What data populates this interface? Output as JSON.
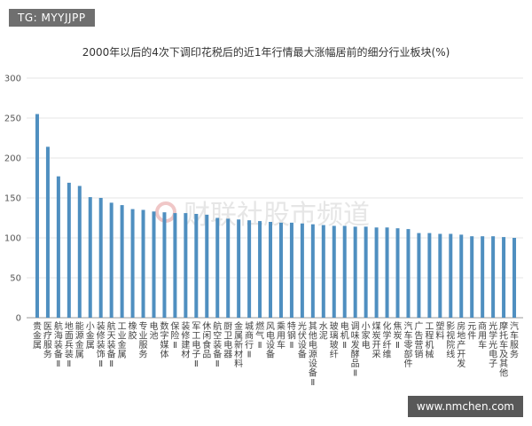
{
  "corner_tag": "TG: MYYJJPP",
  "footer_tag": "www.nmchen.com",
  "watermark_text": "财联社股市频道",
  "colors": {
    "bar": "#4f8fc0",
    "grid": "#e6e6e6",
    "axis": "#999999"
  },
  "chart_data": {
    "type": "bar",
    "title": "2000年以后的4次下调印花税后的近1年行情最大涨幅居前的细分行业板块(%)",
    "ylim": [
      0,
      300
    ],
    "yticks": [
      0,
      50,
      100,
      150,
      200,
      250,
      300
    ],
    "grid": true,
    "categories": [
      "贵金属",
      "医疗服务",
      "航海装备Ⅱ",
      "地面兵装Ⅱ",
      "能源金属",
      "小金属",
      "装修装饰Ⅱ",
      "航天装备Ⅱ",
      "工业金属",
      "橡胶",
      "专业服务",
      "电池",
      "数字媒体",
      "保险Ⅱ",
      "装修建材",
      "军工电子Ⅱ",
      "休闲食品",
      "航空装备Ⅱ",
      "厨卫电器",
      "金属新材料",
      "城商行Ⅱ",
      "燃气Ⅱ",
      "风电设备",
      "乘用车",
      "特钢Ⅱ",
      "光伏设备",
      "其他电源设备Ⅱ",
      "水泥",
      "玻璃玻纤",
      "电机Ⅱ",
      "调味发酵品Ⅱ",
      "小家电",
      "煤炭开采",
      "化学纤维",
      "焦炭Ⅱ",
      "汽车零部件",
      "广告营销",
      "工程机械",
      "塑料",
      "影视院线",
      "房地产开发",
      "元件",
      "商用车",
      "光学光电子",
      "摩托车及其他",
      "汽车服务"
    ],
    "values": [
      255,
      214,
      177,
      169,
      165,
      151,
      150,
      144,
      141,
      136,
      135,
      133,
      132,
      131,
      131,
      130,
      129,
      125,
      124,
      123,
      122,
      121,
      120,
      119,
      119,
      118,
      117,
      116,
      115,
      115,
      114,
      114,
      113,
      113,
      112,
      111,
      106,
      106,
      105,
      105,
      104,
      102,
      102,
      102,
      101,
      100
    ]
  }
}
